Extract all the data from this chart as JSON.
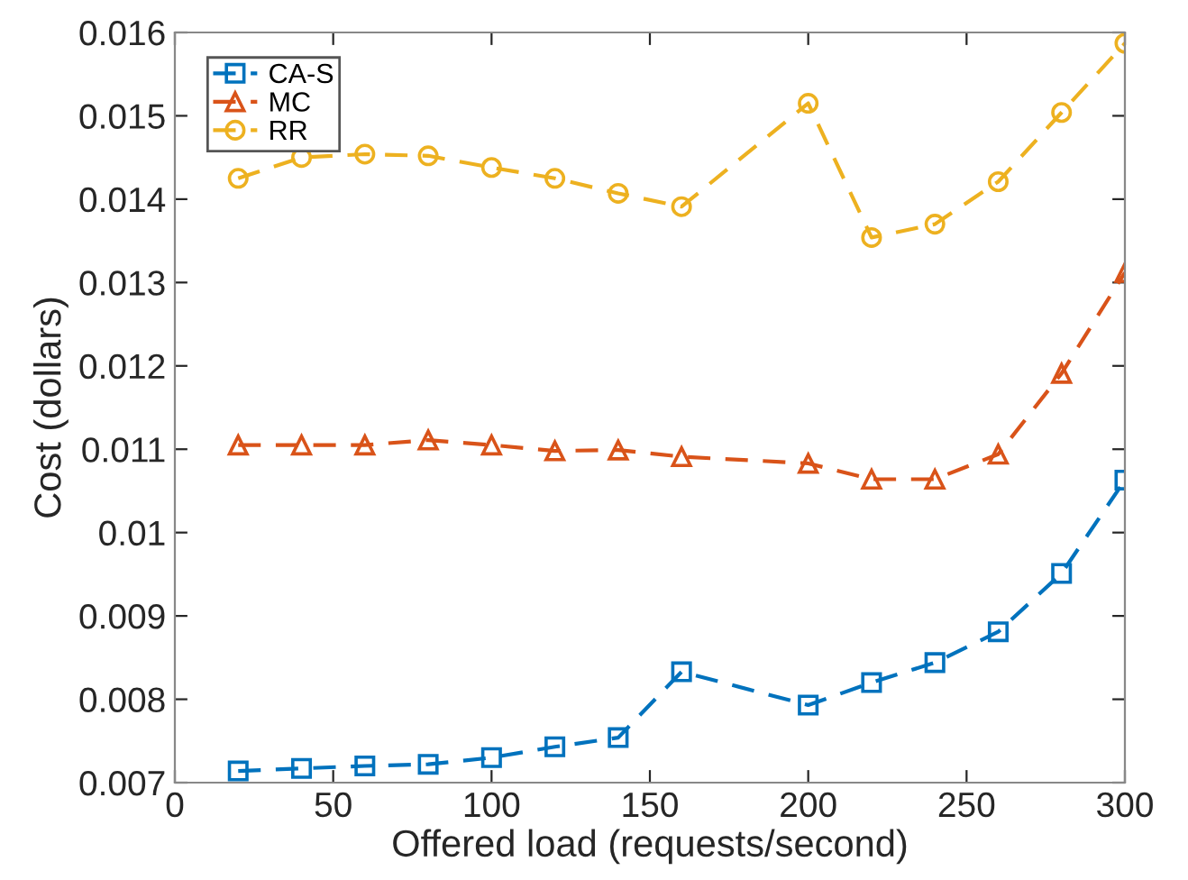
{
  "chart_data": {
    "type": "line",
    "xlabel": "Offered load (requests/second)",
    "ylabel": "Cost (dollars)",
    "x": [
      20,
      40,
      60,
      80,
      100,
      120,
      140,
      160,
      200,
      220,
      240,
      260,
      280,
      300
    ],
    "series": [
      {
        "name": "CA-S",
        "color": "#0072bd",
        "marker": "square",
        "values": [
          0.00714,
          0.00717,
          0.0072,
          0.00722,
          0.0073,
          0.00743,
          0.00754,
          0.00833,
          0.00793,
          0.0082,
          0.00844,
          0.00881,
          0.00951,
          0.01063
        ]
      },
      {
        "name": "MC",
        "color": "#d95319",
        "marker": "triangle",
        "values": [
          0.01105,
          0.01105,
          0.01105,
          0.01111,
          0.01105,
          0.01098,
          0.01099,
          0.01091,
          0.01083,
          0.01064,
          0.01064,
          0.01094,
          0.01191,
          0.01312
        ]
      },
      {
        "name": "RR",
        "color": "#edb120",
        "marker": "circle",
        "values": [
          0.01425,
          0.0145,
          0.01454,
          0.01452,
          0.01438,
          0.01425,
          0.01407,
          0.01391,
          0.01515,
          0.01354,
          0.0137,
          0.01421,
          0.01504,
          0.01587
        ]
      }
    ],
    "xlim": [
      0,
      300
    ],
    "xticks": [
      0,
      50,
      100,
      150,
      200,
      250,
      300
    ],
    "ylim": [
      0.007,
      0.016
    ],
    "yticks": [
      0.007,
      0.008,
      0.009,
      0.01,
      0.011,
      0.012,
      0.013,
      0.014,
      0.015,
      0.016
    ],
    "line_style": "dashed",
    "legend": "top left",
    "grid": false
  }
}
